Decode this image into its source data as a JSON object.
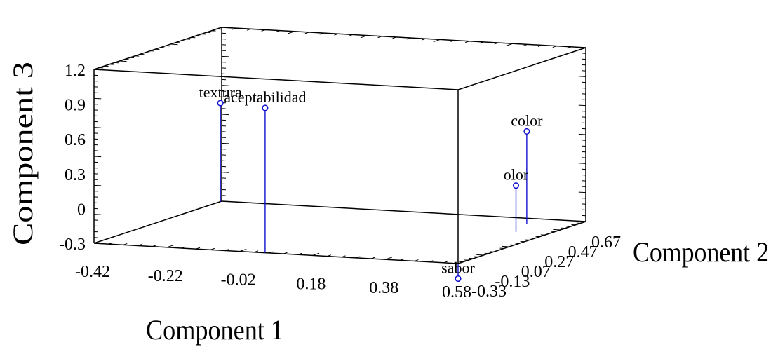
{
  "chart_data": {
    "type": "scatter",
    "subtype": "3d-stem",
    "title": "",
    "xlabel": "Component 1",
    "ylabel": "Component 2",
    "zlabel": "Component 3",
    "xlim": [
      -0.42,
      0.58
    ],
    "ylim": [
      -0.33,
      0.67
    ],
    "zlim": [
      -0.3,
      1.2
    ],
    "x_ticks": [
      "-0.42",
      "-0.22",
      "-0.02",
      "0.18",
      "0.38",
      "0.58"
    ],
    "y_ticks": [
      "-0.33",
      "-0.13",
      "0.07",
      "0.27",
      "0.47",
      "0.67"
    ],
    "z_ticks": [
      "-0.3",
      "0",
      "0.3",
      "0.6",
      "0.9",
      "1.2"
    ],
    "grid": false,
    "marker_color": "#1010cc",
    "points": [
      {
        "label": "textura",
        "x": -0.42,
        "y": 0.66,
        "z": 0.55
      },
      {
        "label": "aceptabilidad",
        "x": 0.05,
        "y": -0.33,
        "z": 0.95
      },
      {
        "label": "color",
        "x": 0.46,
        "y": 0.55,
        "z": 0.5
      },
      {
        "label": "olor",
        "x": 0.49,
        "y": 0.38,
        "z": 0.1
      },
      {
        "label": "sabor",
        "x": 0.58,
        "y": -0.33,
        "z": -0.43
      }
    ]
  }
}
